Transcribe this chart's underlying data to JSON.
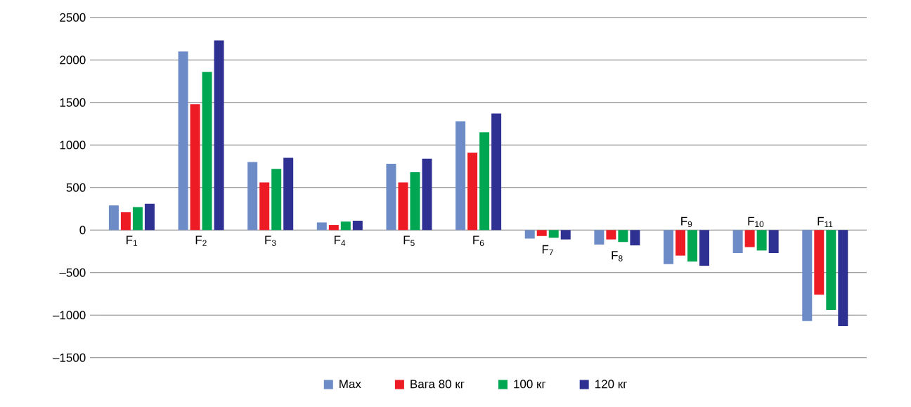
{
  "chart_data": {
    "type": "bar",
    "categories": [
      "F$_{1}$",
      "F$_{2}$",
      "F$_{3}$",
      "F$_{4}$",
      "F$_{5}$",
      "F$_{6}$",
      "F$_{7}$",
      "F$_{8}$",
      "F$_{9}$",
      "F$_{10}$",
      "F$_{11}$"
    ],
    "series": [
      {
        "name": "Max",
        "color": "#6d8bc7",
        "values": [
          290,
          2100,
          800,
          90,
          780,
          1280,
          -100,
          -170,
          -400,
          -270,
          -1070
        ]
      },
      {
        "name": "Вага 80 кг",
        "color": "#ed1c24",
        "values": [
          210,
          1480,
          560,
          60,
          560,
          910,
          -70,
          -110,
          -300,
          -200,
          -760
        ]
      },
      {
        "name": "100 кг",
        "color": "#00a651",
        "values": [
          270,
          1860,
          720,
          100,
          680,
          1150,
          -90,
          -140,
          -370,
          -240,
          -940
        ]
      },
      {
        "name": "120 кг",
        "color": "#2e3192",
        "values": [
          310,
          2230,
          850,
          110,
          840,
          1370,
          -110,
          -180,
          -420,
          -270,
          -1130
        ]
      }
    ],
    "ylim": [
      -1500,
      2500
    ],
    "yticks": [
      {
        "value": -1500,
        "label": "–1500"
      },
      {
        "value": -1000,
        "label": "–1000"
      },
      {
        "value": -500,
        "label": "–500"
      },
      0,
      500,
      1000,
      1500,
      2000,
      2500
    ],
    "grid": "y",
    "legend": "bottom"
  }
}
